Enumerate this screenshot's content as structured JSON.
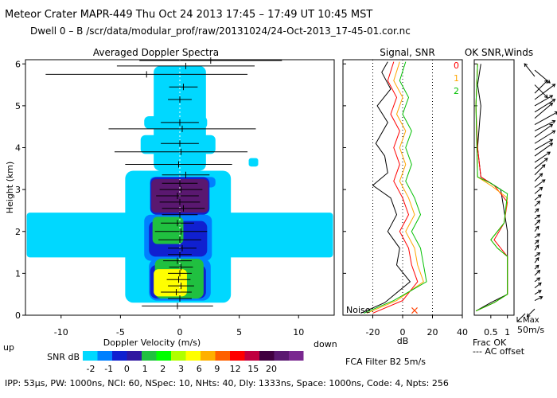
{
  "header": {
    "title": "Meteor Crater   MAPR-449   Thu Oct 24 2013 17:45 – 17:49 UT 10:45 MST",
    "dwell": "Dwell  0 –  B   /scr/data/modular_prof/raw/20131024/24-Oct-2013_17-45-01.cor.nc"
  },
  "footer": {
    "params": "IPP: 53μs,  PW: 1000ns,  NCI: 60,  NSpec: 10, NHts: 40,  Dly: 1333ns,  Space: 1000ns,  Code: 4,  Npts: 256",
    "filter": "FCA Filter B2  5m/s"
  },
  "chart_data": [
    {
      "type": "heatmap",
      "title": "Averaged Doppler Spectra",
      "xlabel": "Doppler Velocity (m/s)",
      "ylabel": "Height (km)",
      "xlim": [
        -13,
        13
      ],
      "ylim": [
        0,
        6.1
      ],
      "xticks": [
        -10,
        -5,
        0,
        5,
        10
      ],
      "yticks": [
        0,
        1,
        2,
        3,
        4,
        5,
        6
      ],
      "x_left_label": "up",
      "x_right_label": "down",
      "colorbar": {
        "label": "SNR dB",
        "ticks": [
          "-2",
          "-1",
          "0",
          "1",
          "2",
          "3",
          "6",
          "9",
          "12",
          "15",
          "20"
        ],
        "colors": [
          "#00d8ff",
          "#0080ff",
          "#1020d0",
          "#3018a0",
          "#20c040",
          "#00ff00",
          "#b0ff00",
          "#ffff00",
          "#ffb000",
          "#ff6000",
          "#ff0000",
          "#c00040",
          "#400040",
          "#5a1870",
          "#7a2890"
        ]
      },
      "mean_velocity": [
        {
          "h": 0.22,
          "v": -0.2
        },
        {
          "h": 0.4,
          "v": 0.0
        },
        {
          "h": 0.55,
          "v": -0.3
        },
        {
          "h": 0.7,
          "v": 0.1
        },
        {
          "h": 0.85,
          "v": -0.1
        },
        {
          "h": 1.0,
          "v": 0.0
        },
        {
          "h": 1.15,
          "v": 0.1
        },
        {
          "h": 1.3,
          "v": -0.2
        },
        {
          "h": 1.45,
          "v": 0.0
        },
        {
          "h": 1.6,
          "v": 0.2
        },
        {
          "h": 1.8,
          "v": 0.0
        },
        {
          "h": 2.0,
          "v": 0.1
        },
        {
          "h": 2.2,
          "v": -0.2
        },
        {
          "h": 2.4,
          "v": 0.0
        },
        {
          "h": 2.55,
          "v": 0.3
        },
        {
          "h": 2.7,
          "v": 0.0
        },
        {
          "h": 2.85,
          "v": -0.2
        },
        {
          "h": 3.0,
          "v": 0.1
        },
        {
          "h": 3.15,
          "v": 0.0
        },
        {
          "h": 3.35,
          "v": 0.5
        },
        {
          "h": 3.6,
          "v": -0.1
        },
        {
          "h": 3.9,
          "v": 0.1
        },
        {
          "h": 4.1,
          "v": 0.0
        },
        {
          "h": 4.45,
          "v": 0.2
        },
        {
          "h": 4.6,
          "v": 0.0
        },
        {
          "h": 5.15,
          "v": 0.0
        },
        {
          "h": 5.45,
          "v": 0.3
        },
        {
          "h": 5.75,
          "v": -2.8
        },
        {
          "h": 5.95,
          "v": 0.5
        },
        {
          "h": 6.08,
          "v": 2.6
        }
      ],
      "spectral_width": [
        {
          "h": 0.22,
          "w": 3.0
        },
        {
          "h": 0.4,
          "w": 1.0
        },
        {
          "h": 0.55,
          "w": 1.3
        },
        {
          "h": 0.7,
          "w": 1.1
        },
        {
          "h": 0.85,
          "w": 1.0
        },
        {
          "h": 1.0,
          "w": 1.0
        },
        {
          "h": 1.15,
          "w": 1.0
        },
        {
          "h": 1.3,
          "w": 1.2
        },
        {
          "h": 1.45,
          "w": 1.0
        },
        {
          "h": 1.6,
          "w": 1.2
        },
        {
          "h": 1.8,
          "w": 1.8
        },
        {
          "h": 2.0,
          "w": 2.2
        },
        {
          "h": 2.2,
          "w": 1.4
        },
        {
          "h": 2.4,
          "w": 1.5
        },
        {
          "h": 2.55,
          "w": 1.8
        },
        {
          "h": 2.7,
          "w": 1.7
        },
        {
          "h": 2.85,
          "w": 1.8
        },
        {
          "h": 3.0,
          "w": 1.8
        },
        {
          "h": 3.15,
          "w": 1.5
        },
        {
          "h": 3.35,
          "w": 2.0
        },
        {
          "h": 3.6,
          "w": 4.5
        },
        {
          "h": 3.9,
          "w": 5.6
        },
        {
          "h": 4.1,
          "w": 1.6
        },
        {
          "h": 4.45,
          "w": 6.2
        },
        {
          "h": 4.6,
          "w": 1.6
        },
        {
          "h": 5.15,
          "w": 1.0
        },
        {
          "h": 5.45,
          "w": 1.2
        },
        {
          "h": 5.75,
          "w": 8.5
        },
        {
          "h": 5.95,
          "w": 5.8
        },
        {
          "h": 6.08,
          "w": 6.0
        }
      ]
    },
    {
      "type": "line",
      "title": "Signal, SNR",
      "xlabel": "dB",
      "xlim": [
        -40,
        40
      ],
      "ylim": [
        0,
        6.1
      ],
      "xticks": [
        -20,
        0,
        20,
        40
      ],
      "noise_label": "Noise",
      "dotted_reference_x": [
        -20,
        0,
        20
      ],
      "series": [
        {
          "name": "black",
          "color": "#000000",
          "points": [
            [
              -28,
              0.05
            ],
            [
              -12,
              0.3
            ],
            [
              5,
              0.8
            ],
            [
              -4,
              1.2
            ],
            [
              -2,
              1.6
            ],
            [
              -10,
              2.0
            ],
            [
              -4,
              2.4
            ],
            [
              -8,
              2.8
            ],
            [
              -20,
              3.1
            ],
            [
              -10,
              3.4
            ],
            [
              -12,
              3.8
            ],
            [
              -18,
              4.1
            ],
            [
              -10,
              4.6
            ],
            [
              -17,
              5.0
            ],
            [
              -8,
              5.4
            ],
            [
              -14,
              5.8
            ],
            [
              -10,
              6.05
            ]
          ]
        },
        {
          "name": "red",
          "color": "#ff0000",
          "points": [
            [
              -20,
              0.05
            ],
            [
              0,
              0.35
            ],
            [
              10,
              0.8
            ],
            [
              6,
              1.2
            ],
            [
              4,
              1.6
            ],
            [
              -2,
              2.0
            ],
            [
              4,
              2.4
            ],
            [
              0,
              2.8
            ],
            [
              -6,
              3.2
            ],
            [
              -2,
              3.6
            ],
            [
              -6,
              4.0
            ],
            [
              -2,
              4.4
            ],
            [
              -8,
              4.8
            ],
            [
              -4,
              5.2
            ],
            [
              -10,
              5.6
            ],
            [
              -6,
              6.05
            ]
          ]
        },
        {
          "name": "orange",
          "color": "#ffa500",
          "points": [
            [
              -24,
              0.05
            ],
            [
              -4,
              0.35
            ],
            [
              14,
              0.8
            ],
            [
              10,
              1.2
            ],
            [
              8,
              1.6
            ],
            [
              2,
              2.0
            ],
            [
              8,
              2.4
            ],
            [
              4,
              2.8
            ],
            [
              -2,
              3.2
            ],
            [
              2,
              3.6
            ],
            [
              -2,
              4.0
            ],
            [
              2,
              4.4
            ],
            [
              -4,
              4.8
            ],
            [
              0,
              5.2
            ],
            [
              -6,
              5.6
            ],
            [
              -2,
              6.05
            ]
          ]
        },
        {
          "name": "green",
          "color": "#00c000",
          "points": [
            [
              -26,
              0.05
            ],
            [
              -6,
              0.35
            ],
            [
              16,
              0.8
            ],
            [
              14,
              1.2
            ],
            [
              12,
              1.6
            ],
            [
              6,
              2.0
            ],
            [
              12,
              2.4
            ],
            [
              8,
              2.8
            ],
            [
              2,
              3.2
            ],
            [
              6,
              3.6
            ],
            [
              2,
              4.0
            ],
            [
              6,
              4.4
            ],
            [
              0,
              4.8
            ],
            [
              4,
              5.2
            ],
            [
              -2,
              5.6
            ],
            [
              2,
              6.05
            ]
          ]
        }
      ],
      "marker": {
        "symbol": "×",
        "color": "#ff4000",
        "x": 8,
        "y": 0.12
      }
    },
    {
      "type": "line",
      "title": "OK SNR,Winds",
      "xlim": [
        0,
        1.2
      ],
      "ylim": [
        0,
        6.1
      ],
      "xticks": [
        0.5,
        1
      ],
      "xtick_labels": [
        "0.5",
        "1"
      ],
      "axis_notes": [
        "Frac OK",
        "--- AC offset"
      ],
      "legend": [
        {
          "label": "0",
          "color": "#ff0000"
        },
        {
          "label": "1",
          "color": "#ffa500"
        },
        {
          "label": "2",
          "color": "#00c000"
        }
      ],
      "series": [
        {
          "name": "black",
          "color": "#000000",
          "points": [
            [
              0.05,
              0.1
            ],
            [
              0.5,
              0.3
            ],
            [
              1.0,
              0.5
            ],
            [
              1.0,
              2.0
            ],
            [
              0.8,
              3.0
            ],
            [
              0.2,
              3.3
            ],
            [
              0.1,
              4.0
            ],
            [
              0.2,
              5.0
            ],
            [
              0.1,
              5.5
            ],
            [
              0.2,
              6.0
            ]
          ]
        },
        {
          "name": "red",
          "color": "#ff0000",
          "points": [
            [
              0.05,
              0.1
            ],
            [
              0.6,
              0.3
            ],
            [
              1.0,
              0.5
            ],
            [
              1.0,
              1.4
            ],
            [
              0.8,
              1.6
            ],
            [
              0.6,
              1.8
            ],
            [
              0.9,
              2.2
            ],
            [
              1.0,
              2.7
            ],
            [
              0.6,
              3.1
            ],
            [
              0.2,
              3.3
            ],
            [
              0.1,
              4.0
            ],
            [
              0.05,
              5.0
            ],
            [
              0.1,
              6.0
            ]
          ]
        },
        {
          "name": "orange",
          "color": "#ffa500",
          "points": [
            [
              0.05,
              0.1
            ],
            [
              0.6,
              0.3
            ],
            [
              1.0,
              0.5
            ],
            [
              1.0,
              1.4
            ],
            [
              0.7,
              1.6
            ],
            [
              0.5,
              1.8
            ],
            [
              0.9,
              2.2
            ],
            [
              1.0,
              2.8
            ],
            [
              0.5,
              3.1
            ],
            [
              0.1,
              3.3
            ],
            [
              0.05,
              5.0
            ],
            [
              0.1,
              6.0
            ]
          ]
        },
        {
          "name": "green",
          "color": "#00c000",
          "points": [
            [
              0.05,
              0.1
            ],
            [
              0.6,
              0.3
            ],
            [
              1.0,
              0.5
            ],
            [
              1.0,
              1.4
            ],
            [
              0.7,
              1.6
            ],
            [
              0.5,
              1.8
            ],
            [
              0.9,
              2.2
            ],
            [
              1.0,
              2.9
            ],
            [
              0.5,
              3.15
            ],
            [
              0.1,
              3.3
            ],
            [
              0.05,
              5.0
            ],
            [
              0.1,
              6.0
            ]
          ]
        }
      ],
      "wind_scale_label": "Max\n50m/s",
      "wind_vectors": [
        {
          "h": 0.15,
          "u": -6,
          "v": -6
        },
        {
          "h": 0.35,
          "u": 6,
          "v": 3
        },
        {
          "h": 0.5,
          "u": 5,
          "v": 3
        },
        {
          "h": 0.65,
          "u": 5,
          "v": 4
        },
        {
          "h": 0.8,
          "u": 4,
          "v": 3
        },
        {
          "h": 0.95,
          "u": 4,
          "v": 4
        },
        {
          "h": 1.1,
          "u": 3,
          "v": 3
        },
        {
          "h": 1.25,
          "u": 3,
          "v": 4
        },
        {
          "h": 1.4,
          "u": 4,
          "v": 3
        },
        {
          "h": 1.55,
          "u": 3,
          "v": 4
        },
        {
          "h": 1.7,
          "u": 3,
          "v": 3
        },
        {
          "h": 1.85,
          "u": 4,
          "v": 3
        },
        {
          "h": 2.0,
          "u": 3,
          "v": 4
        },
        {
          "h": 2.15,
          "u": 4,
          "v": 4
        },
        {
          "h": 2.3,
          "u": 4,
          "v": 3
        },
        {
          "h": 2.45,
          "u": 3,
          "v": 3
        },
        {
          "h": 2.6,
          "u": 4,
          "v": 4
        },
        {
          "h": 2.75,
          "u": 5,
          "v": 4
        },
        {
          "h": 2.9,
          "u": 6,
          "v": 5
        },
        {
          "h": 3.05,
          "u": 8,
          "v": 6
        },
        {
          "h": 3.2,
          "u": 6,
          "v": 6
        },
        {
          "h": 3.35,
          "u": 8,
          "v": 8
        },
        {
          "h": 3.5,
          "u": 10,
          "v": 8
        },
        {
          "h": 3.65,
          "u": 12,
          "v": 8
        },
        {
          "h": 3.8,
          "u": 14,
          "v": 10
        },
        {
          "h": 3.95,
          "u": 14,
          "v": 8
        },
        {
          "h": 4.1,
          "u": 16,
          "v": 10
        },
        {
          "h": 4.25,
          "u": 14,
          "v": 10
        },
        {
          "h": 4.4,
          "u": 16,
          "v": 8
        },
        {
          "h": 4.55,
          "u": 18,
          "v": 10
        },
        {
          "h": 4.7,
          "u": 14,
          "v": 12
        },
        {
          "h": 4.85,
          "u": 16,
          "v": 10
        },
        {
          "h": 5.0,
          "u": 14,
          "v": 8
        },
        {
          "h": 5.15,
          "u": 16,
          "v": 12
        },
        {
          "h": 5.3,
          "u": 10,
          "v": 10
        },
        {
          "h": 5.5,
          "u": 10,
          "v": -10
        },
        {
          "h": 5.7,
          "u": -8,
          "v": 10
        },
        {
          "h": 5.85,
          "u": 12,
          "v": -10
        }
      ]
    }
  ]
}
